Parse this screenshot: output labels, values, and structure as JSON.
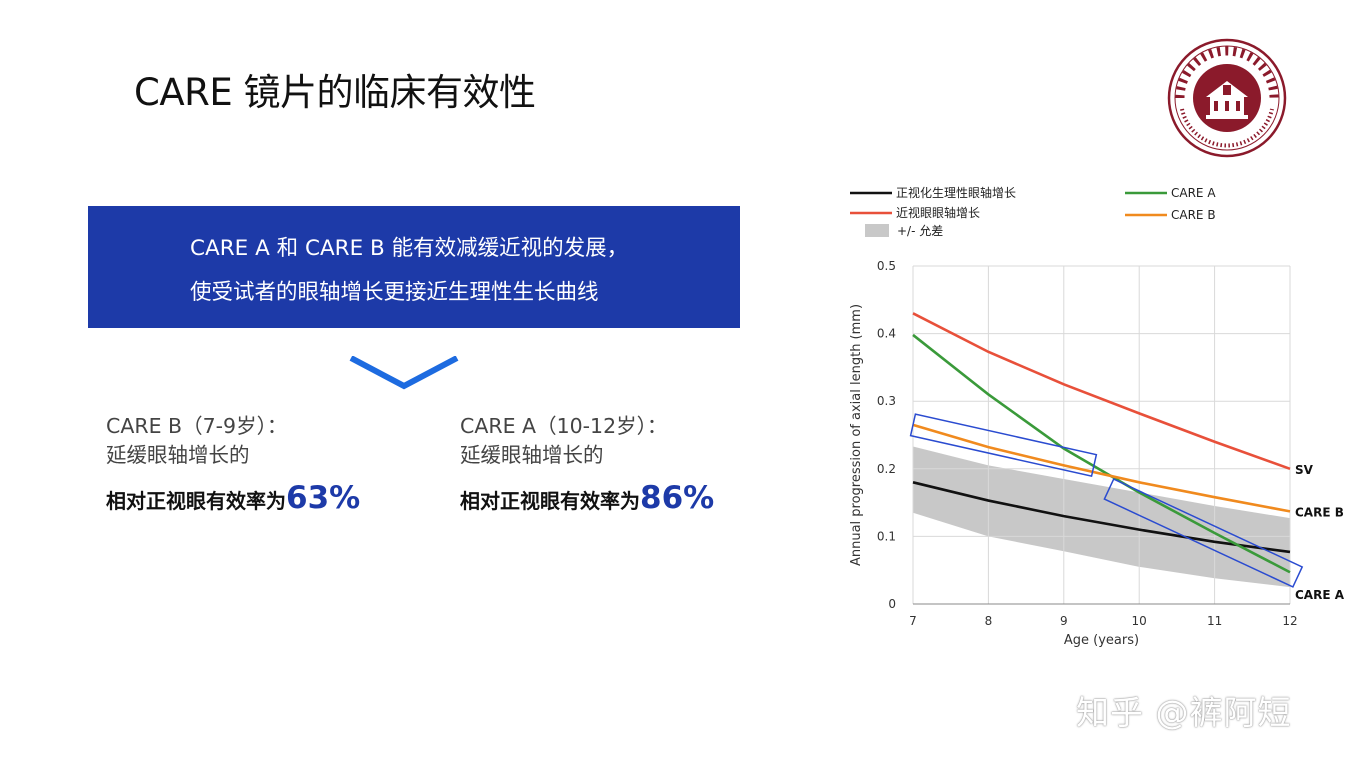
{
  "slide": {
    "title": "CARE 镜片的临床有效性",
    "banner_line1": "CARE A 和 CARE B 能有效减缓近视的发展，",
    "banner_line2": "使受试者的眼轴增长更接近生理性生长曲线"
  },
  "stats": [
    {
      "line1": "CARE B（7-9岁）：",
      "line2": "延缓眼轴增长的",
      "bold": "相对正视眼有效率为",
      "pct": "63%"
    },
    {
      "line1": "CARE A（10-12岁）：",
      "line2": "延缓眼轴增长的",
      "bold": "相对正视眼有效率为",
      "pct": "86%"
    }
  ],
  "logo": {
    "name": "seal-of-wenzhou-medical-university",
    "text_cn": "温州医科大学",
    "text_en": "WENZHOU MEDICAL UNIVERSITY",
    "year": "1912",
    "color": "#8b1a2b"
  },
  "watermark": "知乎 @裤阿短",
  "colors": {
    "banner": "#1d3aa8",
    "accent": "#1d3aa8"
  },
  "chart_data": {
    "type": "line",
    "xlabel": "Age (years)",
    "ylabel": "Annual progression of axial length (mm)",
    "xlim": [
      7,
      12
    ],
    "ylim": [
      0,
      0.5
    ],
    "x_ticks": [
      "7",
      "8",
      "9",
      "10",
      "11",
      "12"
    ],
    "y_ticks": [
      "0",
      "0.1",
      "0.2",
      "0.3",
      "0.4",
      "0.5"
    ],
    "grid": true,
    "legend_position": "top",
    "legend": [
      {
        "label": "正视化生理性眼轴增长",
        "color": "#111111",
        "kind": "line"
      },
      {
        "label": "近视眼眼轴增长",
        "color": "#e8503a",
        "kind": "line"
      },
      {
        "label": "+/- 允差",
        "color": "#c8c8c8",
        "kind": "box"
      },
      {
        "label": "CARE A",
        "color": "#3a9a3a",
        "kind": "line"
      },
      {
        "label": "CARE B",
        "color": "#f08a1e",
        "kind": "line"
      }
    ],
    "series": [
      {
        "key": "emmetropic",
        "color": "#111111",
        "x": [
          7,
          8,
          9,
          10,
          11,
          12
        ],
        "y": [
          0.18,
          0.153,
          0.13,
          0.11,
          0.092,
          0.077
        ]
      },
      {
        "key": "sv",
        "name": "SV",
        "color": "#e8503a",
        "x": [
          7,
          8,
          9,
          10,
          11,
          12
        ],
        "y": [
          0.43,
          0.373,
          0.325,
          0.282,
          0.24,
          0.2
        ]
      },
      {
        "key": "care_a",
        "name": "CARE A",
        "color": "#3a9a3a",
        "x": [
          7,
          8,
          9,
          10,
          11,
          12
        ],
        "y": [
          0.398,
          0.31,
          0.23,
          0.165,
          0.105,
          0.047
        ]
      },
      {
        "key": "care_b",
        "name": "CARE B",
        "color": "#f08a1e",
        "x": [
          7,
          8,
          9,
          10,
          11,
          12
        ],
        "y": [
          0.265,
          0.232,
          0.205,
          0.18,
          0.158,
          0.137
        ]
      }
    ],
    "band": {
      "x": [
        7,
        8,
        9,
        10,
        11,
        12
      ],
      "upper": [
        0.233,
        0.205,
        0.185,
        0.165,
        0.145,
        0.127
      ],
      "lower": [
        0.135,
        0.1,
        0.078,
        0.055,
        0.038,
        0.025
      ]
    },
    "end_labels": [
      "SV",
      "CARE B",
      "CARE A"
    ],
    "highlight_boxes": [
      {
        "x": [
          7,
          9.4
        ],
        "y": [
          0.265,
          0.205
        ]
      },
      {
        "x": [
          9.6,
          12.1
        ],
        "y": [
          0.17,
          0.04
        ]
      }
    ]
  }
}
